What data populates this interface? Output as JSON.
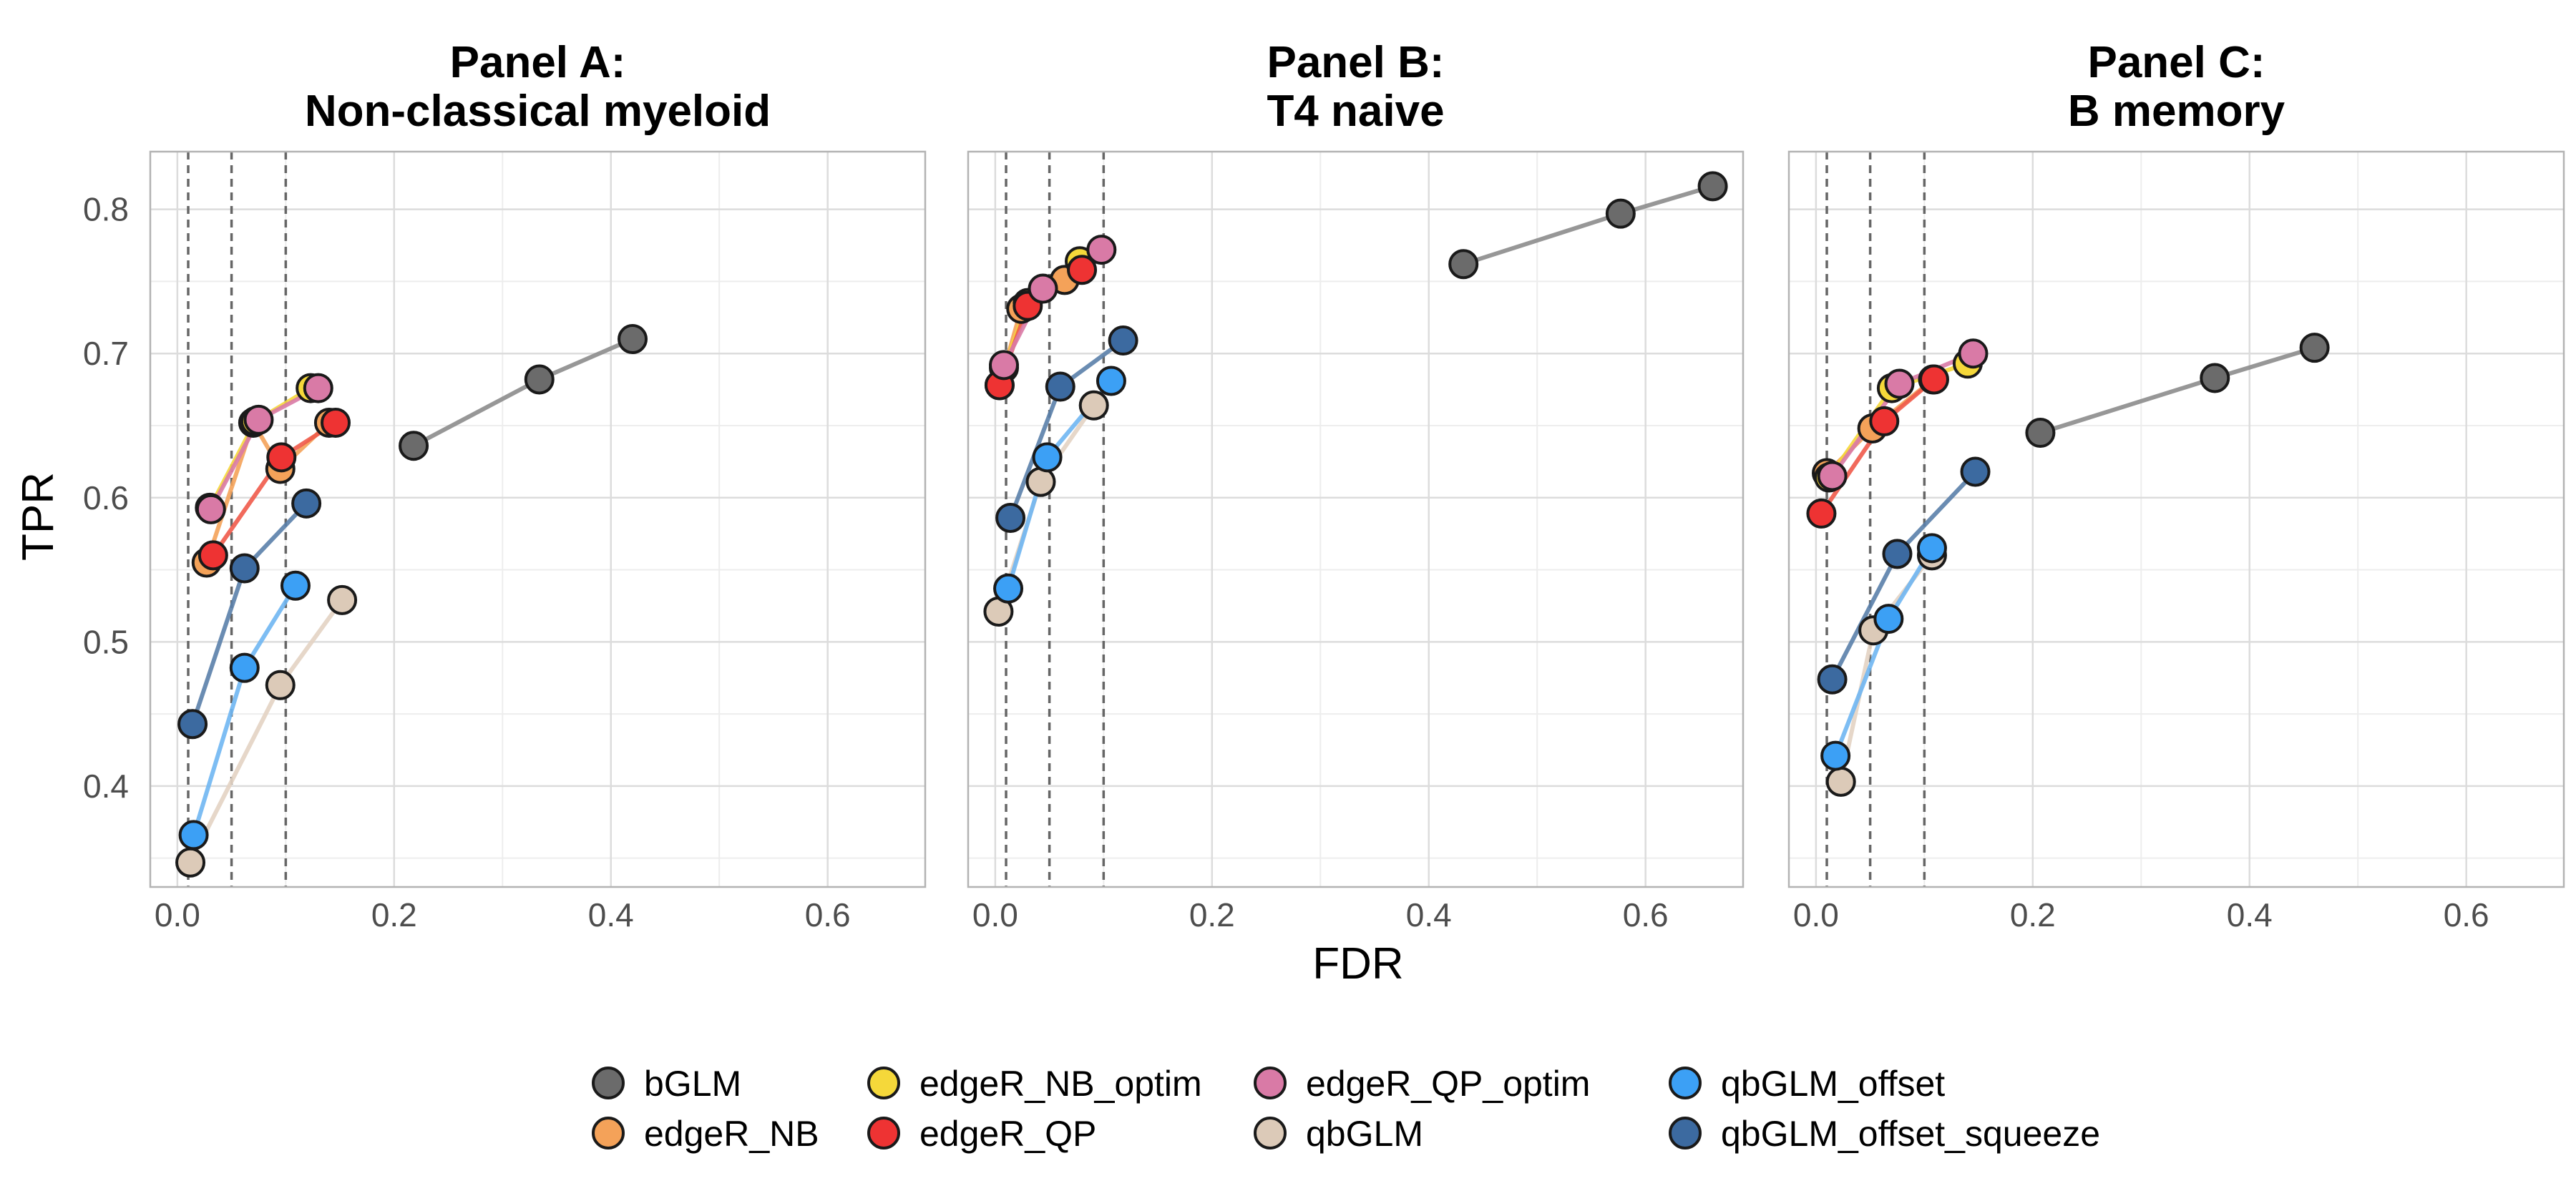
{
  "chart_data": {
    "type": "scatter",
    "xlabel": "FDR",
    "ylabel": "TPR",
    "xlim": [
      -0.025,
      0.69
    ],
    "ylim": [
      0.33,
      0.84
    ],
    "x_ticks": [
      0.0,
      0.2,
      0.4,
      0.6
    ],
    "x_tick_labels": [
      "0.0",
      "0.2",
      "0.4",
      "0.6"
    ],
    "y_ticks": [
      0.4,
      0.5,
      0.6,
      0.7,
      0.8
    ],
    "y_tick_labels": [
      "0.4",
      "0.5",
      "0.6",
      "0.7",
      "0.8"
    ],
    "grid": true,
    "reference_lines_x": [
      0.01,
      0.05,
      0.1
    ],
    "legend_position": "bottom",
    "methods": [
      {
        "name": "bGLM",
        "color": "#6b6b6b",
        "line_color": "#8c8c8c"
      },
      {
        "name": "edgeR_NB",
        "color": "#f4a259",
        "line_color": "#f4a259"
      },
      {
        "name": "edgeR_NB_optim",
        "color": "#f5d83a",
        "line_color": "#f5d83a"
      },
      {
        "name": "edgeR_QP",
        "color": "#ee3333",
        "line_color": "#f05a4a"
      },
      {
        "name": "edgeR_QP_optim",
        "color": "#d97aa6",
        "line_color": "#d97aa6"
      },
      {
        "name": "qbGLM",
        "color": "#dccab8",
        "line_color": "#e3d3c3"
      },
      {
        "name": "qbGLM_offset",
        "color": "#3ca0f5",
        "line_color": "#6fb6f2"
      },
      {
        "name": "qbGLM_offset_squeeze",
        "color": "#3c6aa0",
        "line_color": "#5a80aa"
      }
    ],
    "legend_order": [
      [
        "bGLM",
        "edgeR_NB"
      ],
      [
        "edgeR_NB_optim",
        "edgeR_QP"
      ],
      [
        "edgeR_QP_optim",
        "qbGLM"
      ],
      [
        "qbGLM_offset",
        "qbGLM_offset_squeeze"
      ]
    ],
    "panels": [
      {
        "title_line1": "Panel A:",
        "title_line2": "Non-classical myeloid",
        "series": [
          {
            "name": "bGLM",
            "x": [
              0.218,
              0.334,
              0.42
            ],
            "y": [
              0.636,
              0.682,
              0.71
            ]
          },
          {
            "name": "edgeR_NB",
            "x": [
              0.027,
              0.07,
              0.095,
              0.14
            ],
            "y": [
              0.555,
              0.652,
              0.62,
              0.652
            ]
          },
          {
            "name": "edgeR_NB_optim",
            "x": [
              0.03,
              0.072,
              0.123
            ],
            "y": [
              0.593,
              0.653,
              0.676
            ]
          },
          {
            "name": "edgeR_QP",
            "x": [
              0.033,
              0.096,
              0.146
            ],
            "y": [
              0.56,
              0.628,
              0.652
            ]
          },
          {
            "name": "edgeR_QP_optim",
            "x": [
              0.031,
              0.075,
              0.13
            ],
            "y": [
              0.592,
              0.654,
              0.676
            ]
          },
          {
            "name": "qbGLM",
            "x": [
              0.012,
              0.095,
              0.152
            ],
            "y": [
              0.347,
              0.47,
              0.529
            ]
          },
          {
            "name": "qbGLM_offset",
            "x": [
              0.015,
              0.062,
              0.109
            ],
            "y": [
              0.366,
              0.482,
              0.539
            ]
          },
          {
            "name": "qbGLM_offset_squeeze",
            "x": [
              0.014,
              0.062,
              0.119
            ],
            "y": [
              0.443,
              0.551,
              0.596
            ]
          }
        ]
      },
      {
        "title_line1": "Panel B:",
        "title_line2": "T4 naive",
        "series": [
          {
            "name": "bGLM",
            "x": [
              0.432,
              0.577,
              0.662
            ],
            "y": [
              0.762,
              0.797,
              0.816
            ]
          },
          {
            "name": "edgeR_NB",
            "x": [
              0.004,
              0.024,
              0.064
            ],
            "y": [
              0.678,
              0.731,
              0.751
            ]
          },
          {
            "name": "edgeR_NB_optim",
            "x": [
              0.008,
              0.03,
              0.078
            ],
            "y": [
              0.69,
              0.735,
              0.764
            ]
          },
          {
            "name": "edgeR_QP",
            "x": [
              0.004,
              0.03,
              0.08
            ],
            "y": [
              0.678,
              0.733,
              0.758
            ]
          },
          {
            "name": "edgeR_QP_optim",
            "x": [
              0.008,
              0.044,
              0.098
            ],
            "y": [
              0.692,
              0.745,
              0.772
            ]
          },
          {
            "name": "qbGLM",
            "x": [
              0.003,
              0.042,
              0.091
            ],
            "y": [
              0.521,
              0.611,
              0.664
            ]
          },
          {
            "name": "qbGLM_offset",
            "x": [
              0.012,
              0.048,
              0.107
            ],
            "y": [
              0.537,
              0.628,
              0.681
            ]
          },
          {
            "name": "qbGLM_offset_squeeze",
            "x": [
              0.014,
              0.06,
              0.118
            ],
            "y": [
              0.586,
              0.677,
              0.709
            ]
          }
        ]
      },
      {
        "title_line1": "Panel C:",
        "title_line2": "B memory",
        "series": [
          {
            "name": "bGLM",
            "x": [
              0.207,
              0.368,
              0.46
            ],
            "y": [
              0.645,
              0.683,
              0.704
            ]
          },
          {
            "name": "edgeR_NB",
            "x": [
              0.01,
              0.052,
              0.108
            ],
            "y": [
              0.617,
              0.648,
              0.682
            ]
          },
          {
            "name": "edgeR_NB_optim",
            "x": [
              0.012,
              0.07,
              0.14
            ],
            "y": [
              0.614,
              0.676,
              0.693
            ]
          },
          {
            "name": "edgeR_QP",
            "x": [
              0.005,
              0.063,
              0.109
            ],
            "y": [
              0.589,
              0.653,
              0.682
            ]
          },
          {
            "name": "edgeR_QP_optim",
            "x": [
              0.015,
              0.077,
              0.145
            ],
            "y": [
              0.615,
              0.679,
              0.7
            ]
          },
          {
            "name": "qbGLM",
            "x": [
              0.023,
              0.053,
              0.107
            ],
            "y": [
              0.403,
              0.508,
              0.56
            ]
          },
          {
            "name": "qbGLM_offset",
            "x": [
              0.018,
              0.067,
              0.107
            ],
            "y": [
              0.421,
              0.516,
              0.565
            ]
          },
          {
            "name": "qbGLM_offset_squeeze",
            "x": [
              0.015,
              0.075,
              0.147
            ],
            "y": [
              0.474,
              0.561,
              0.618
            ]
          }
        ]
      }
    ]
  }
}
